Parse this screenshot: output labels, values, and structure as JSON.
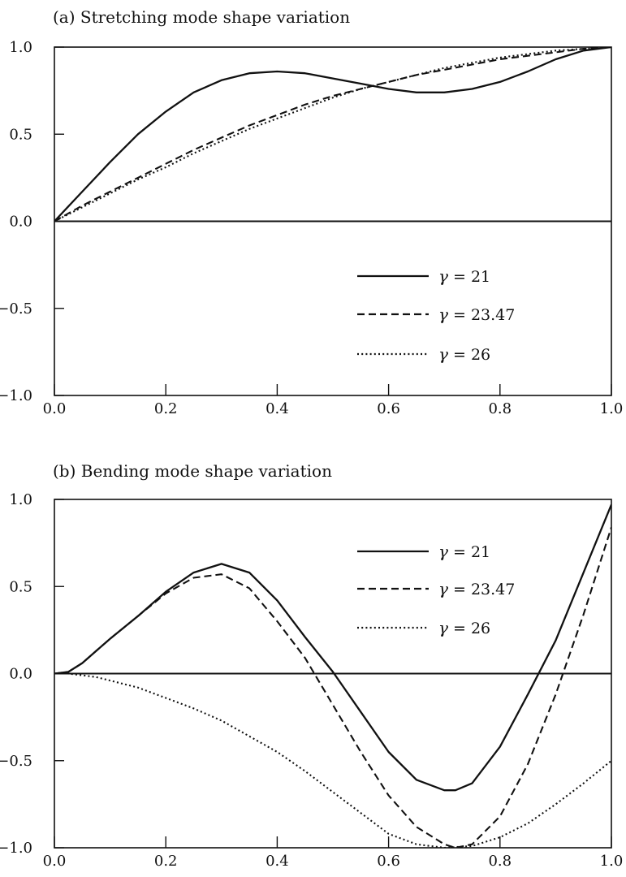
{
  "chart_data": [
    {
      "type": "line",
      "title": "(a) Stretching mode shape variation",
      "xlim": [
        0.0,
        1.0
      ],
      "ylim": [
        -1.0,
        1.0
      ],
      "xticks": [
        "0.0",
        "0.2",
        "0.4",
        "0.6",
        "0.8",
        "1.0"
      ],
      "yticks": [
        "1.0",
        "0.5",
        "0.0",
        "-0.5",
        "-1.0"
      ],
      "grid": false,
      "legend_position": "bottom-right",
      "series": [
        {
          "name": "γ = 21",
          "style": "solid",
          "x": [
            0,
            0.05,
            0.1,
            0.15,
            0.2,
            0.25,
            0.3,
            0.35,
            0.4,
            0.45,
            0.5,
            0.55,
            0.6,
            0.65,
            0.7,
            0.75,
            0.8,
            0.85,
            0.9,
            0.95,
            1.0
          ],
          "y": [
            0,
            0.17,
            0.34,
            0.5,
            0.63,
            0.74,
            0.81,
            0.85,
            0.86,
            0.85,
            0.82,
            0.79,
            0.76,
            0.74,
            0.74,
            0.76,
            0.8,
            0.86,
            0.93,
            0.98,
            1.0
          ]
        },
        {
          "name": "γ = 23.47",
          "style": "dashed",
          "x": [
            0,
            0.05,
            0.1,
            0.15,
            0.2,
            0.25,
            0.3,
            0.35,
            0.4,
            0.45,
            0.5,
            0.55,
            0.6,
            0.65,
            0.7,
            0.75,
            0.8,
            0.85,
            0.9,
            0.95,
            1.0
          ],
          "y": [
            0,
            0.09,
            0.17,
            0.25,
            0.33,
            0.41,
            0.48,
            0.55,
            0.61,
            0.67,
            0.72,
            0.76,
            0.8,
            0.84,
            0.87,
            0.9,
            0.93,
            0.95,
            0.97,
            0.99,
            1.0
          ]
        },
        {
          "name": "γ = 26",
          "style": "dotted",
          "x": [
            0,
            0.05,
            0.1,
            0.15,
            0.2,
            0.25,
            0.3,
            0.35,
            0.4,
            0.45,
            0.5,
            0.55,
            0.6,
            0.65,
            0.7,
            0.75,
            0.8,
            0.85,
            0.9,
            0.95,
            1.0
          ],
          "y": [
            0,
            0.08,
            0.16,
            0.24,
            0.31,
            0.39,
            0.46,
            0.53,
            0.59,
            0.65,
            0.71,
            0.76,
            0.8,
            0.84,
            0.88,
            0.91,
            0.94,
            0.96,
            0.98,
            0.99,
            1.0
          ]
        }
      ]
    },
    {
      "type": "line",
      "title": "(b) Bending mode shape variation",
      "xlim": [
        0.0,
        1.0
      ],
      "ylim": [
        -1.0,
        1.0
      ],
      "xticks": [
        "0.0",
        "0.2",
        "0.4",
        "0.6",
        "0.8",
        "1.0"
      ],
      "yticks": [
        "1.0",
        "0.5",
        "0.0",
        "-0.5",
        "-1.0"
      ],
      "grid": false,
      "legend_position": "top-right",
      "series": [
        {
          "name": "γ = 21",
          "style": "solid",
          "x": [
            0,
            0.025,
            0.05,
            0.075,
            0.1,
            0.15,
            0.2,
            0.25,
            0.3,
            0.35,
            0.4,
            0.45,
            0.5,
            0.55,
            0.6,
            0.65,
            0.7,
            0.72,
            0.75,
            0.8,
            0.85,
            0.9,
            0.95,
            1.0
          ],
          "y": [
            0,
            0.01,
            0.06,
            0.13,
            0.2,
            0.33,
            0.47,
            0.58,
            0.63,
            0.58,
            0.42,
            0.21,
            0.01,
            -0.22,
            -0.45,
            -0.61,
            -0.67,
            -0.67,
            -0.63,
            -0.42,
            -0.12,
            0.19,
            0.58,
            0.97
          ]
        },
        {
          "name": "γ = 23.47",
          "style": "dashed",
          "x": [
            0,
            0.025,
            0.05,
            0.075,
            0.1,
            0.15,
            0.2,
            0.25,
            0.3,
            0.35,
            0.4,
            0.45,
            0.5,
            0.55,
            0.6,
            0.65,
            0.7,
            0.72,
            0.75,
            0.8,
            0.85,
            0.9,
            0.95,
            1.0
          ],
          "y": [
            0,
            0.01,
            0.06,
            0.13,
            0.2,
            0.33,
            0.46,
            0.55,
            0.57,
            0.49,
            0.3,
            0.09,
            -0.18,
            -0.45,
            -0.7,
            -0.88,
            -0.98,
            -1.0,
            -0.98,
            -0.82,
            -0.52,
            -0.12,
            0.34,
            0.84
          ]
        },
        {
          "name": "γ = 26",
          "style": "dotted",
          "x": [
            0,
            0.025,
            0.05,
            0.075,
            0.1,
            0.15,
            0.2,
            0.25,
            0.3,
            0.35,
            0.4,
            0.45,
            0.5,
            0.55,
            0.6,
            0.65,
            0.7,
            0.75,
            0.8,
            0.85,
            0.9,
            0.95,
            1.0
          ],
          "y": [
            0,
            0.0,
            -0.01,
            -0.02,
            -0.04,
            -0.08,
            -0.14,
            -0.2,
            -0.27,
            -0.36,
            -0.45,
            -0.56,
            -0.68,
            -0.8,
            -0.92,
            -0.98,
            -1.0,
            -0.99,
            -0.94,
            -0.86,
            -0.75,
            -0.63,
            -0.5
          ]
        }
      ]
    }
  ]
}
